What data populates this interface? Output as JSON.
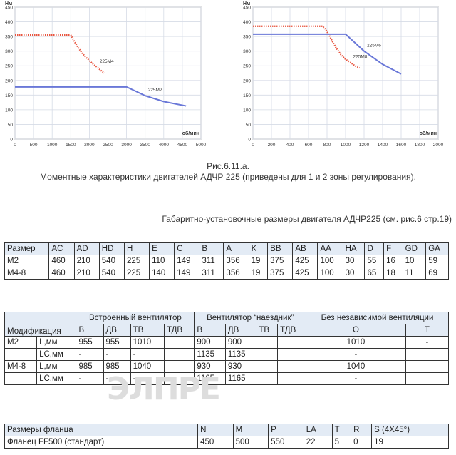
{
  "chart_data": [
    {
      "type": "line",
      "title": "",
      "xlabel": "об/мин",
      "ylabel": "Нм",
      "xlim": [
        0,
        5000
      ],
      "ylim": [
        0,
        450
      ],
      "xticks": [
        0,
        500,
        1000,
        1500,
        2000,
        2500,
        3000,
        3500,
        4000,
        4500,
        5000
      ],
      "yticks": [
        0,
        50,
        100,
        150,
        200,
        250,
        300,
        350,
        400,
        450
      ],
      "grid": true,
      "series": [
        {
          "name": "225M4",
          "color": "#e8553f",
          "style": "dotted",
          "x": [
            0,
            1500,
            1600,
            1700,
            1800,
            1900,
            2000,
            2100,
            2200,
            2300,
            2400
          ],
          "y": [
            355,
            355,
            332,
            312,
            294,
            280,
            268,
            256,
            246,
            235,
            225
          ]
        },
        {
          "name": "225M2",
          "color": "#6a78d8",
          "style": "solid",
          "x": [
            0,
            3000,
            3500,
            4000,
            4600
          ],
          "y": [
            178,
            178,
            148,
            128,
            113
          ]
        }
      ]
    },
    {
      "type": "line",
      "title": "",
      "xlabel": "об/мин",
      "ylabel": "Нм",
      "xlim": [
        0,
        2000
      ],
      "ylim": [
        0,
        450
      ],
      "xticks": [
        0,
        200,
        400,
        600,
        800,
        1000,
        1200,
        1400,
        1600,
        1800,
        2000
      ],
      "yticks": [
        0,
        50,
        100,
        150,
        200,
        250,
        300,
        350,
        400,
        450
      ],
      "grid": true,
      "series": [
        {
          "name": "225M8",
          "color": "#e8553f",
          "style": "dotted",
          "x": [
            0,
            750,
            780,
            820,
            860,
            900,
            950,
            1000,
            1050,
            1100,
            1150
          ],
          "y": [
            385,
            385,
            376,
            356,
            332,
            310,
            288,
            272,
            262,
            250,
            243
          ]
        },
        {
          "name": "225M6",
          "color": "#6a78d8",
          "style": "solid",
          "x": [
            0,
            1000,
            1200,
            1400,
            1600
          ],
          "y": [
            358,
            358,
            300,
            255,
            222
          ]
        }
      ]
    }
  ],
  "captions": {
    "fig": "Рис.6.11.а.",
    "fig_desc": "Моментные характеристики двигателей АДЧР 225 (приведены для 1 и 2 зоны регулирования).",
    "dims_title": "Габаритно-установочные размеры двигателя АДЧР225 (см. рис.6 стр.19)"
  },
  "table1": {
    "header": [
      "Размер",
      "AC",
      "AD",
      "HD",
      "H",
      "E",
      "C",
      "B",
      "A",
      "K",
      "BB",
      "AB",
      "AA",
      "HA",
      "D",
      "F",
      "GD",
      "GA"
    ],
    "rows": [
      [
        "M2",
        "460",
        "210",
        "540",
        "225",
        "110",
        "149",
        "311",
        "356",
        "19",
        "375",
        "425",
        "100",
        "30",
        "55",
        "16",
        "10",
        "59"
      ],
      [
        "M4-8",
        "460",
        "210",
        "540",
        "225",
        "140",
        "149",
        "311",
        "356",
        "19",
        "375",
        "425",
        "100",
        "30",
        "65",
        "18",
        "11",
        "69"
      ]
    ]
  },
  "table2": {
    "group_headers": {
      "built_in": "Встроенный вентилятор",
      "rider": "Вентилятор “наездник”",
      "no_vent": "Без независимой вентиляции"
    },
    "modification": "Модификация",
    "sub_headers": [
      "В",
      "ДВ",
      "ТВ",
      "ТДВ",
      "В",
      "ДВ",
      "ТВ",
      "ТДВ",
      "О",
      "Т"
    ],
    "rows": [
      {
        "mod": "M2",
        "param": "L,мм",
        "cells": [
          "955",
          "955",
          "1010",
          "",
          "900",
          "900",
          "",
          "",
          "1010",
          "-"
        ]
      },
      {
        "mod": "",
        "param": "LC,мм",
        "cells": [
          "-",
          "-",
          "-",
          "",
          "1135",
          "1135",
          "",
          "",
          "-",
          ""
        ]
      },
      {
        "mod": "M4-8",
        "param": "L,мм",
        "cells": [
          "985",
          "985",
          "1040",
          "",
          "930",
          "930",
          "",
          "",
          "1040",
          ""
        ]
      },
      {
        "mod": "",
        "param": "LC,мм",
        "cells": [
          "-",
          "-",
          "-",
          "",
          "1165",
          "1165",
          "",
          "",
          "-",
          ""
        ]
      }
    ]
  },
  "table3": {
    "header": [
      "Размеры фланца",
      "N",
      "M",
      "P",
      "LA",
      "T",
      "R",
      "S (4X45°)"
    ],
    "rows": [
      [
        "Фланец FF500 (стандарт)",
        "450",
        "500",
        "550",
        "22",
        "5",
        "0",
        "19"
      ]
    ]
  },
  "watermark": "ЭЛПРЕ"
}
